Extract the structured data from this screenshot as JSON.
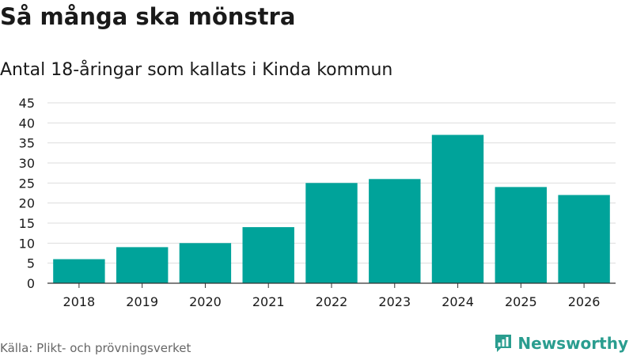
{
  "title": "Så många ska mönstra",
  "subtitle": "Antal 18-åringar som kallats i Kinda kommun",
  "source": "Källa: Plikt- och prövningsverket",
  "brand": {
    "name": "Newsworthy",
    "icon": "newsworthy-logo-icon",
    "color": "#2a9d8f"
  },
  "chart_data": {
    "type": "bar",
    "title": "Så många ska mönstra",
    "subtitle": "Antal 18-åringar som kallats i Kinda kommun",
    "xlabel": "",
    "ylabel": "",
    "categories": [
      "2018",
      "2019",
      "2020",
      "2021",
      "2022",
      "2023",
      "2024",
      "2025",
      "2026"
    ],
    "values": [
      6,
      9,
      10,
      14,
      25,
      26,
      37,
      24,
      22
    ],
    "ylim": [
      0,
      45
    ],
    "yticks": [
      0,
      5,
      10,
      15,
      20,
      25,
      30,
      35,
      40,
      45
    ],
    "grid": true,
    "legend": "none",
    "bar_color": "#00a39a",
    "grid_color": "#dddddd",
    "axis_color": "#333333"
  }
}
